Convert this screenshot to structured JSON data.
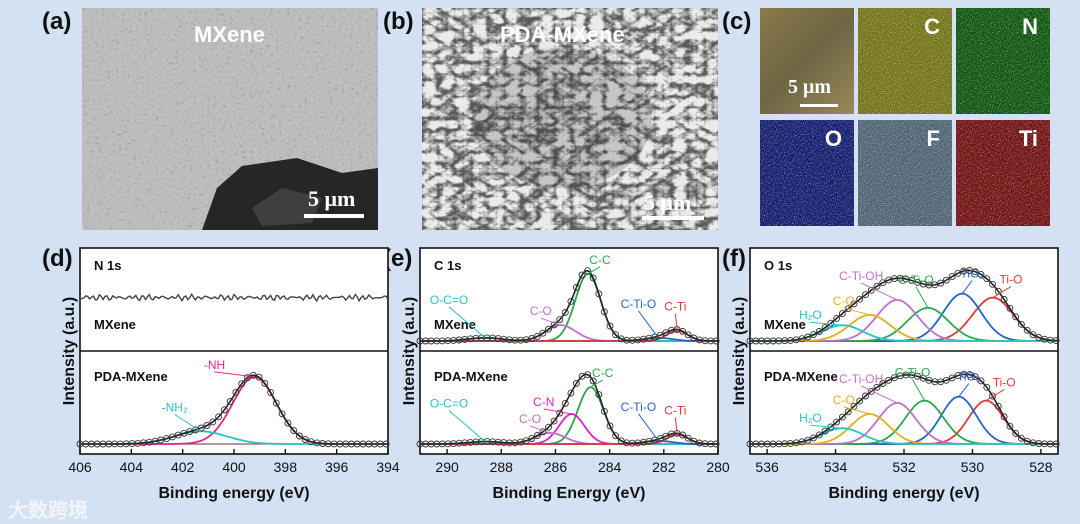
{
  "panels": {
    "a": {
      "label": "(a)",
      "title": "MXene",
      "scale": "5 μm"
    },
    "b": {
      "label": "(b)",
      "title": "PDA-MXene",
      "scale": "5 μm"
    },
    "c": {
      "label": "(c)",
      "scale": "5 μm",
      "elements": [
        {
          "name": "C",
          "color": "#cfd02c"
        },
        {
          "name": "N",
          "color": "#1c9a1c"
        },
        {
          "name": "O",
          "color": "#2436c8"
        },
        {
          "name": "F",
          "color": "#8fb4cf"
        },
        {
          "name": "Ti",
          "color": "#cc2222"
        }
      ]
    },
    "d": {
      "label": "(d)"
    },
    "e": {
      "label": "(e)"
    },
    "f": {
      "label": "(f)"
    }
  },
  "watermark": "大数跨境",
  "chart_data": [
    {
      "type": "line",
      "id": "d",
      "title": "N 1s",
      "xlabel": "Binding energy (eV)",
      "ylabel": "Intensity (a.u.)",
      "xlim": [
        406,
        394
      ],
      "xticks": [
        "406",
        "404",
        "402",
        "400",
        "398",
        "396",
        "394"
      ],
      "top": {
        "sample": "MXene",
        "peaks": []
      },
      "bottom": {
        "sample": "PDA-MXene",
        "peaks": [
          {
            "name": "-NH",
            "center": 399.2,
            "amp": 0.85,
            "fwhm": 2.0,
            "color": "#e0278a"
          },
          {
            "name": "-NH2",
            "center": 401.3,
            "amp": 0.16,
            "fwhm": 2.4,
            "color": "#24c4c8"
          }
        ]
      }
    },
    {
      "type": "line",
      "id": "e",
      "title": "C 1s",
      "xlabel": "Binding Energy (eV)",
      "ylabel": "Intensity (a.u.)",
      "xlim": [
        291,
        280
      ],
      "xticks": [
        "290",
        "288",
        "286",
        "284",
        "282",
        "280"
      ],
      "top": {
        "sample": "MXene",
        "peaks": [
          {
            "name": "C-C",
            "center": 284.8,
            "amp": 0.85,
            "fwhm": 1.1,
            "color": "#2aa84a"
          },
          {
            "name": "C-O",
            "center": 285.8,
            "amp": 0.2,
            "fwhm": 1.3,
            "color": "#c070c8"
          },
          {
            "name": "O-C=O",
            "center": 288.6,
            "amp": 0.04,
            "fwhm": 1.5,
            "color": "#24c4c8"
          },
          {
            "name": "C-Ti-O",
            "center": 282.2,
            "amp": 0.04,
            "fwhm": 1.2,
            "color": "#2466c8"
          },
          {
            "name": "C-Ti",
            "center": 281.5,
            "amp": 0.13,
            "fwhm": 0.9,
            "color": "#e03a3a"
          }
        ]
      },
      "bottom": {
        "sample": "PDA-MXene",
        "peaks": [
          {
            "name": "C-C",
            "center": 284.7,
            "amp": 0.72,
            "fwhm": 1.1,
            "color": "#2aa84a"
          },
          {
            "name": "C-N",
            "center": 285.4,
            "amp": 0.38,
            "fwhm": 1.1,
            "color": "#e020c8"
          },
          {
            "name": "C-O",
            "center": 286.2,
            "amp": 0.14,
            "fwhm": 1.3,
            "color": "#c070c8"
          },
          {
            "name": "O-C=O",
            "center": 288.6,
            "amp": 0.03,
            "fwhm": 1.5,
            "color": "#24c4c8"
          },
          {
            "name": "C-Ti-O",
            "center": 282.2,
            "amp": 0.04,
            "fwhm": 1.2,
            "color": "#2466c8"
          },
          {
            "name": "C-Ti",
            "center": 281.5,
            "amp": 0.12,
            "fwhm": 0.9,
            "color": "#e03a3a"
          }
        ]
      }
    },
    {
      "type": "line",
      "id": "f",
      "title": "O 1s",
      "xlabel": "Binding energy (eV)",
      "ylabel": "Intensity (a.u.)",
      "xlim": [
        536.5,
        527.5
      ],
      "xticks": [
        "536",
        "534",
        "532",
        "530",
        "528"
      ],
      "top": {
        "sample": "MXene",
        "peaks": [
          {
            "name": "Ti-O",
            "center": 529.4,
            "amp": 0.55,
            "fwhm": 1.4,
            "color": "#e03a3a"
          },
          {
            "name": "TiO2",
            "center": 530.3,
            "amp": 0.6,
            "fwhm": 1.3,
            "color": "#2466c8"
          },
          {
            "name": "C-Ti-O",
            "center": 531.3,
            "amp": 0.42,
            "fwhm": 1.4,
            "color": "#2aa84a"
          },
          {
            "name": "C-Ti-OH",
            "center": 532.2,
            "amp": 0.52,
            "fwhm": 1.4,
            "color": "#c070c8"
          },
          {
            "name": "C-O",
            "center": 533.0,
            "amp": 0.33,
            "fwhm": 1.4,
            "color": "#e0b020"
          },
          {
            "name": "H2O",
            "center": 533.8,
            "amp": 0.2,
            "fwhm": 1.4,
            "color": "#24c4c8"
          }
        ]
      },
      "bottom": {
        "sample": "PDA-MXene",
        "peaks": [
          {
            "name": "Ti-O",
            "center": 529.6,
            "amp": 0.55,
            "fwhm": 1.2,
            "color": "#e03a3a"
          },
          {
            "name": "TiO2",
            "center": 530.4,
            "amp": 0.6,
            "fwhm": 1.2,
            "color": "#2466c8"
          },
          {
            "name": "C-Ti-O",
            "center": 531.4,
            "amp": 0.55,
            "fwhm": 1.3,
            "color": "#2aa84a"
          },
          {
            "name": "C-Ti-OH",
            "center": 532.2,
            "amp": 0.52,
            "fwhm": 1.3,
            "color": "#c070c8"
          },
          {
            "name": "C-O",
            "center": 533.0,
            "amp": 0.38,
            "fwhm": 1.3,
            "color": "#e0b020"
          },
          {
            "name": "H2O",
            "center": 533.8,
            "amp": 0.2,
            "fwhm": 1.4,
            "color": "#24c4c8"
          }
        ]
      }
    }
  ]
}
